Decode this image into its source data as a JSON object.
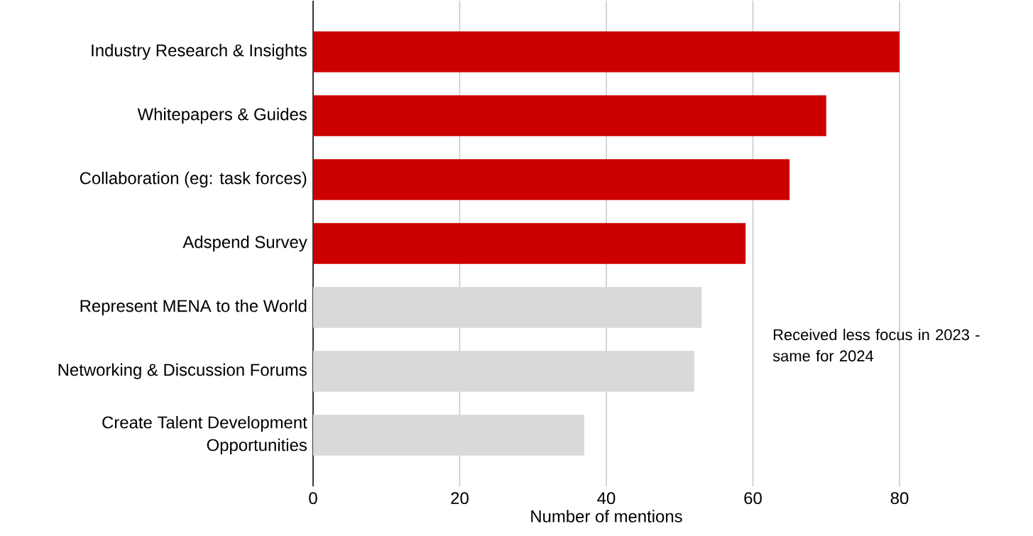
{
  "chart_data": {
    "type": "bar",
    "orientation": "horizontal",
    "categories": [
      "Industry Research & Insights",
      "Whitepapers & Guides",
      "Collaboration (eg: task forces)",
      "Adspend Survey",
      "Represent MENA to the World",
      "Networking & Discussion Forums",
      "Create Talent Development Opportunities"
    ],
    "values": [
      80,
      70,
      65,
      59,
      53,
      52,
      37
    ],
    "colors": [
      "#cc0000",
      "#cc0000",
      "#cc0000",
      "#cc0000",
      "#d9d9d9",
      "#d9d9d9",
      "#d9d9d9"
    ],
    "xlabel": "Number of mentions",
    "xlim": [
      0,
      80
    ],
    "xticks": [
      0,
      20,
      40,
      60,
      80
    ],
    "grid": "x",
    "annotations": [
      "Received less focus in 2023 - same for 2024"
    ]
  }
}
